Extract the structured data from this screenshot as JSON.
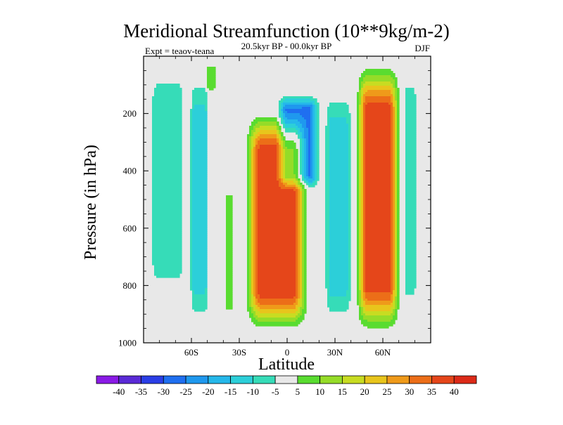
{
  "chart_data": {
    "type": "filled-contour",
    "title": "Meridional Streamfunction (10**9kg/m-2)",
    "left_string": "Expt = teaov-teana",
    "center_string": "20.5kyr BP - 00.0kyr BP",
    "right_string": "DJF",
    "xlabel": "Latitude",
    "ylabel": "Pressure (in hPa)",
    "xlim": [
      -90,
      90
    ],
    "ylim": [
      1000,
      0
    ],
    "x_ticks": [
      {
        "value": -60,
        "label": "60S"
      },
      {
        "value": -30,
        "label": "30S"
      },
      {
        "value": 0,
        "label": "0"
      },
      {
        "value": 30,
        "label": "30N"
      },
      {
        "value": 60,
        "label": "60N"
      }
    ],
    "y_ticks": [
      {
        "value": 200,
        "label": "200"
      },
      {
        "value": 400,
        "label": "400"
      },
      {
        "value": 600,
        "label": "600"
      },
      {
        "value": 800,
        "label": "800"
      },
      {
        "value": 1000,
        "label": "1000"
      }
    ],
    "contour_levels": [
      -40,
      -35,
      -30,
      -25,
      -20,
      -15,
      -10,
      -5,
      5,
      10,
      15,
      20,
      25,
      30,
      35,
      40
    ],
    "colors": [
      "#8a1ae6",
      "#5a2ad6",
      "#2a3ee6",
      "#1f6ff0",
      "#1f98ee",
      "#25b8ea",
      "#2ccfd9",
      "#36dcb8",
      "#e8e8e8",
      "#59dc30",
      "#95dc28",
      "#c8dc22",
      "#e8c51c",
      "#ef9a1a",
      "#ec6e18",
      "#e5461a",
      "#dc2a18"
    ],
    "features": [
      {
        "name": "southern-subpolar-weak-negative-band",
        "lat_range": [
          -88,
          -62
        ],
        "p_range": [
          10,
          860
        ],
        "peak": -10
      },
      {
        "name": "southern-midlatitude-negative-cell",
        "lat_range": [
          -62,
          -48
        ],
        "p_range": [
          25,
          975
        ],
        "peak": -12
      },
      {
        "name": "southern-weak-positive-column",
        "lat_range": [
          -52,
          -44
        ],
        "p_range": [
          20,
          130
        ],
        "peak": 7
      },
      {
        "name": "southern-positive-column",
        "lat_range": [
          -40,
          -33
        ],
        "p_range": [
          420,
          950
        ],
        "peak": 7
      },
      {
        "name": "tropical-positive-cell",
        "lat_range": [
          -28,
          15
        ],
        "p_range": [
          175,
          980
        ],
        "peak": 38
      },
      {
        "name": "upper-tropical-negative-cell",
        "lat_range": [
          -8,
          22
        ],
        "p_range": [
          120,
          480
        ],
        "peak": -27
      },
      {
        "name": "northern-negative-column",
        "lat_range": [
          22,
          42
        ],
        "p_range": [
          80,
          970
        ],
        "peak": -12
      },
      {
        "name": "northern-midlatitude-positive-cell",
        "lat_range": [
          42,
          72
        ],
        "p_range": [
          0,
          990
        ],
        "peak": 38
      },
      {
        "name": "northern-polar-negative-column",
        "lat_range": [
          72,
          82
        ],
        "p_range": [
          0,
          940
        ],
        "peak": -8
      }
    ]
  }
}
